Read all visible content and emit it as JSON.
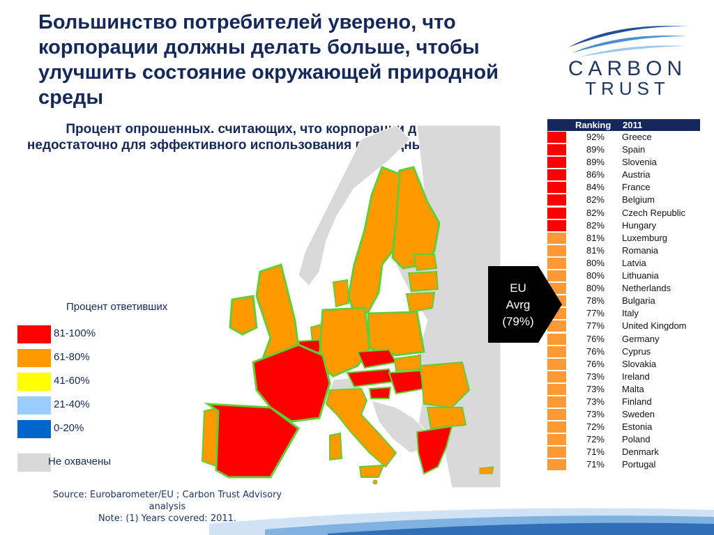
{
  "title": "Большинство потребителей уверено, что корпорации должны делать больше, чтобы улучшить состояние окружающей природной среды",
  "subtitle": "Процент опрошенных. считающих, что корпорации делают недостаточно для эффективного использования природных ресурсов",
  "logo": {
    "line1": "CARBON",
    "line2": "TRUST"
  },
  "legend": {
    "title": "Процент ответивших",
    "items": [
      {
        "label": "81-100%",
        "color": "#ff0000"
      },
      {
        "label": "61-80%",
        "color": "#ff9900"
      },
      {
        "label": "41-60%",
        "color": "#ffff00"
      },
      {
        "label": "21-40%",
        "color": "#99ccff"
      },
      {
        "label": "0-20%",
        "color": "#0066cc"
      },
      {
        "label": "Не охвачены",
        "color": "#d9d9d9"
      }
    ]
  },
  "ranking": {
    "header_label": "Ranking",
    "header_year": "2011",
    "rows": [
      {
        "pct": "92%",
        "country": "Greece",
        "color": "#ff0000"
      },
      {
        "pct": "89%",
        "country": "Spain",
        "color": "#ff0000"
      },
      {
        "pct": "89%",
        "country": "Slovenia",
        "color": "#ff0000"
      },
      {
        "pct": "86%",
        "country": "Austria",
        "color": "#ff0000"
      },
      {
        "pct": "84%",
        "country": "France",
        "color": "#ff0000"
      },
      {
        "pct": "82%",
        "country": "Belgium",
        "color": "#ff0000"
      },
      {
        "pct": "82%",
        "country": "Czech Republic",
        "color": "#ff0000"
      },
      {
        "pct": "82%",
        "country": "Hungary",
        "color": "#ff0000"
      },
      {
        "pct": "81%",
        "country": "Luxemburg",
        "color": "#ff9933"
      },
      {
        "pct": "81%",
        "country": "Romania",
        "color": "#ff9933"
      },
      {
        "pct": "80%",
        "country": "Latvia",
        "color": "#ff9933"
      },
      {
        "pct": "80%",
        "country": "Lithuania",
        "color": "#ff9933"
      },
      {
        "pct": "80%",
        "country": "Netherlands",
        "color": "#ff9933"
      },
      {
        "pct": "78%",
        "country": "Bulgaria",
        "color": "#ff9933"
      },
      {
        "pct": "77%",
        "country": "Italy",
        "color": "#ff9933"
      },
      {
        "pct": "77%",
        "country": "United Kingdom",
        "color": "#ff9933"
      },
      {
        "pct": "76%",
        "country": "Germany",
        "color": "#ff9933"
      },
      {
        "pct": "76%",
        "country": "Cyprus",
        "color": "#ff9933"
      },
      {
        "pct": "76%",
        "country": "Slovakia",
        "color": "#ff9933"
      },
      {
        "pct": "73%",
        "country": "Ireland",
        "color": "#ff9933"
      },
      {
        "pct": "73%",
        "country": "Malta",
        "color": "#ff9933"
      },
      {
        "pct": "73%",
        "country": "Finland",
        "color": "#ff9933"
      },
      {
        "pct": "73%",
        "country": "Sweden",
        "color": "#ff9933"
      },
      {
        "pct": "72%",
        "country": "Estonia",
        "color": "#ff9933"
      },
      {
        "pct": "72%",
        "country": "Poland",
        "color": "#ff9933"
      },
      {
        "pct": "71%",
        "country": "Denmark",
        "color": "#ff9933"
      },
      {
        "pct": "71%",
        "country": "Portugal",
        "color": "#ff9933"
      }
    ]
  },
  "eu_average": {
    "line1": "EU",
    "line2": "Avrg",
    "line3": "(79%)"
  },
  "source": {
    "line1": "Source: Eurobarometer/EU ; Carbon Trust Advisory",
    "line2": "analysis",
    "line3": "Note: (1) Years covered: 2011."
  },
  "colors": {
    "title": "#14285a",
    "red": "#ff0000",
    "orange": "#ff9900",
    "grey": "#d9d9d9",
    "border_green": "#66cc33"
  }
}
